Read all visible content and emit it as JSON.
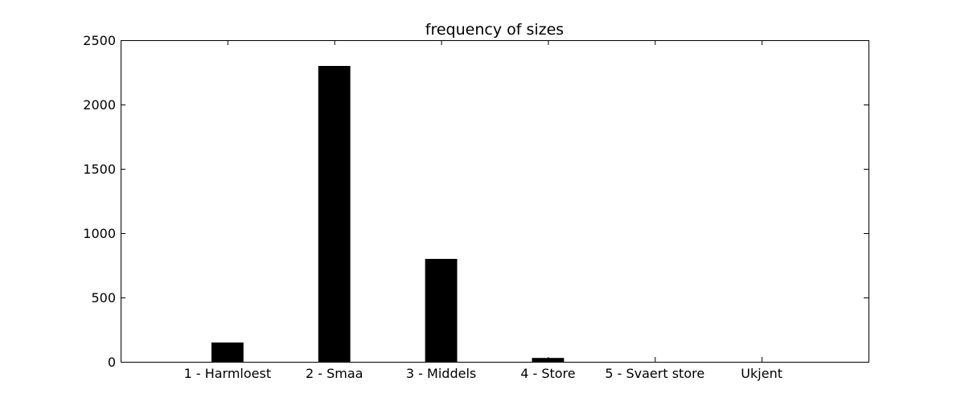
{
  "chart_data": {
    "type": "bar",
    "title": "frequency of sizes",
    "xlabel": "",
    "ylabel": "",
    "categories": [
      "1 - Harmloest",
      "2 - Smaa",
      "3 - Middels",
      "4 - Store",
      "5 - Svaert store",
      "Ukjent"
    ],
    "values": [
      150,
      2300,
      800,
      30,
      0,
      0
    ],
    "ylim": [
      0,
      2500
    ],
    "yticks": [
      0,
      500,
      1000,
      1500,
      2000,
      2500
    ],
    "xlim": [
      -1,
      6
    ],
    "grid": false,
    "legend": "none",
    "bar_color": "#000000"
  }
}
